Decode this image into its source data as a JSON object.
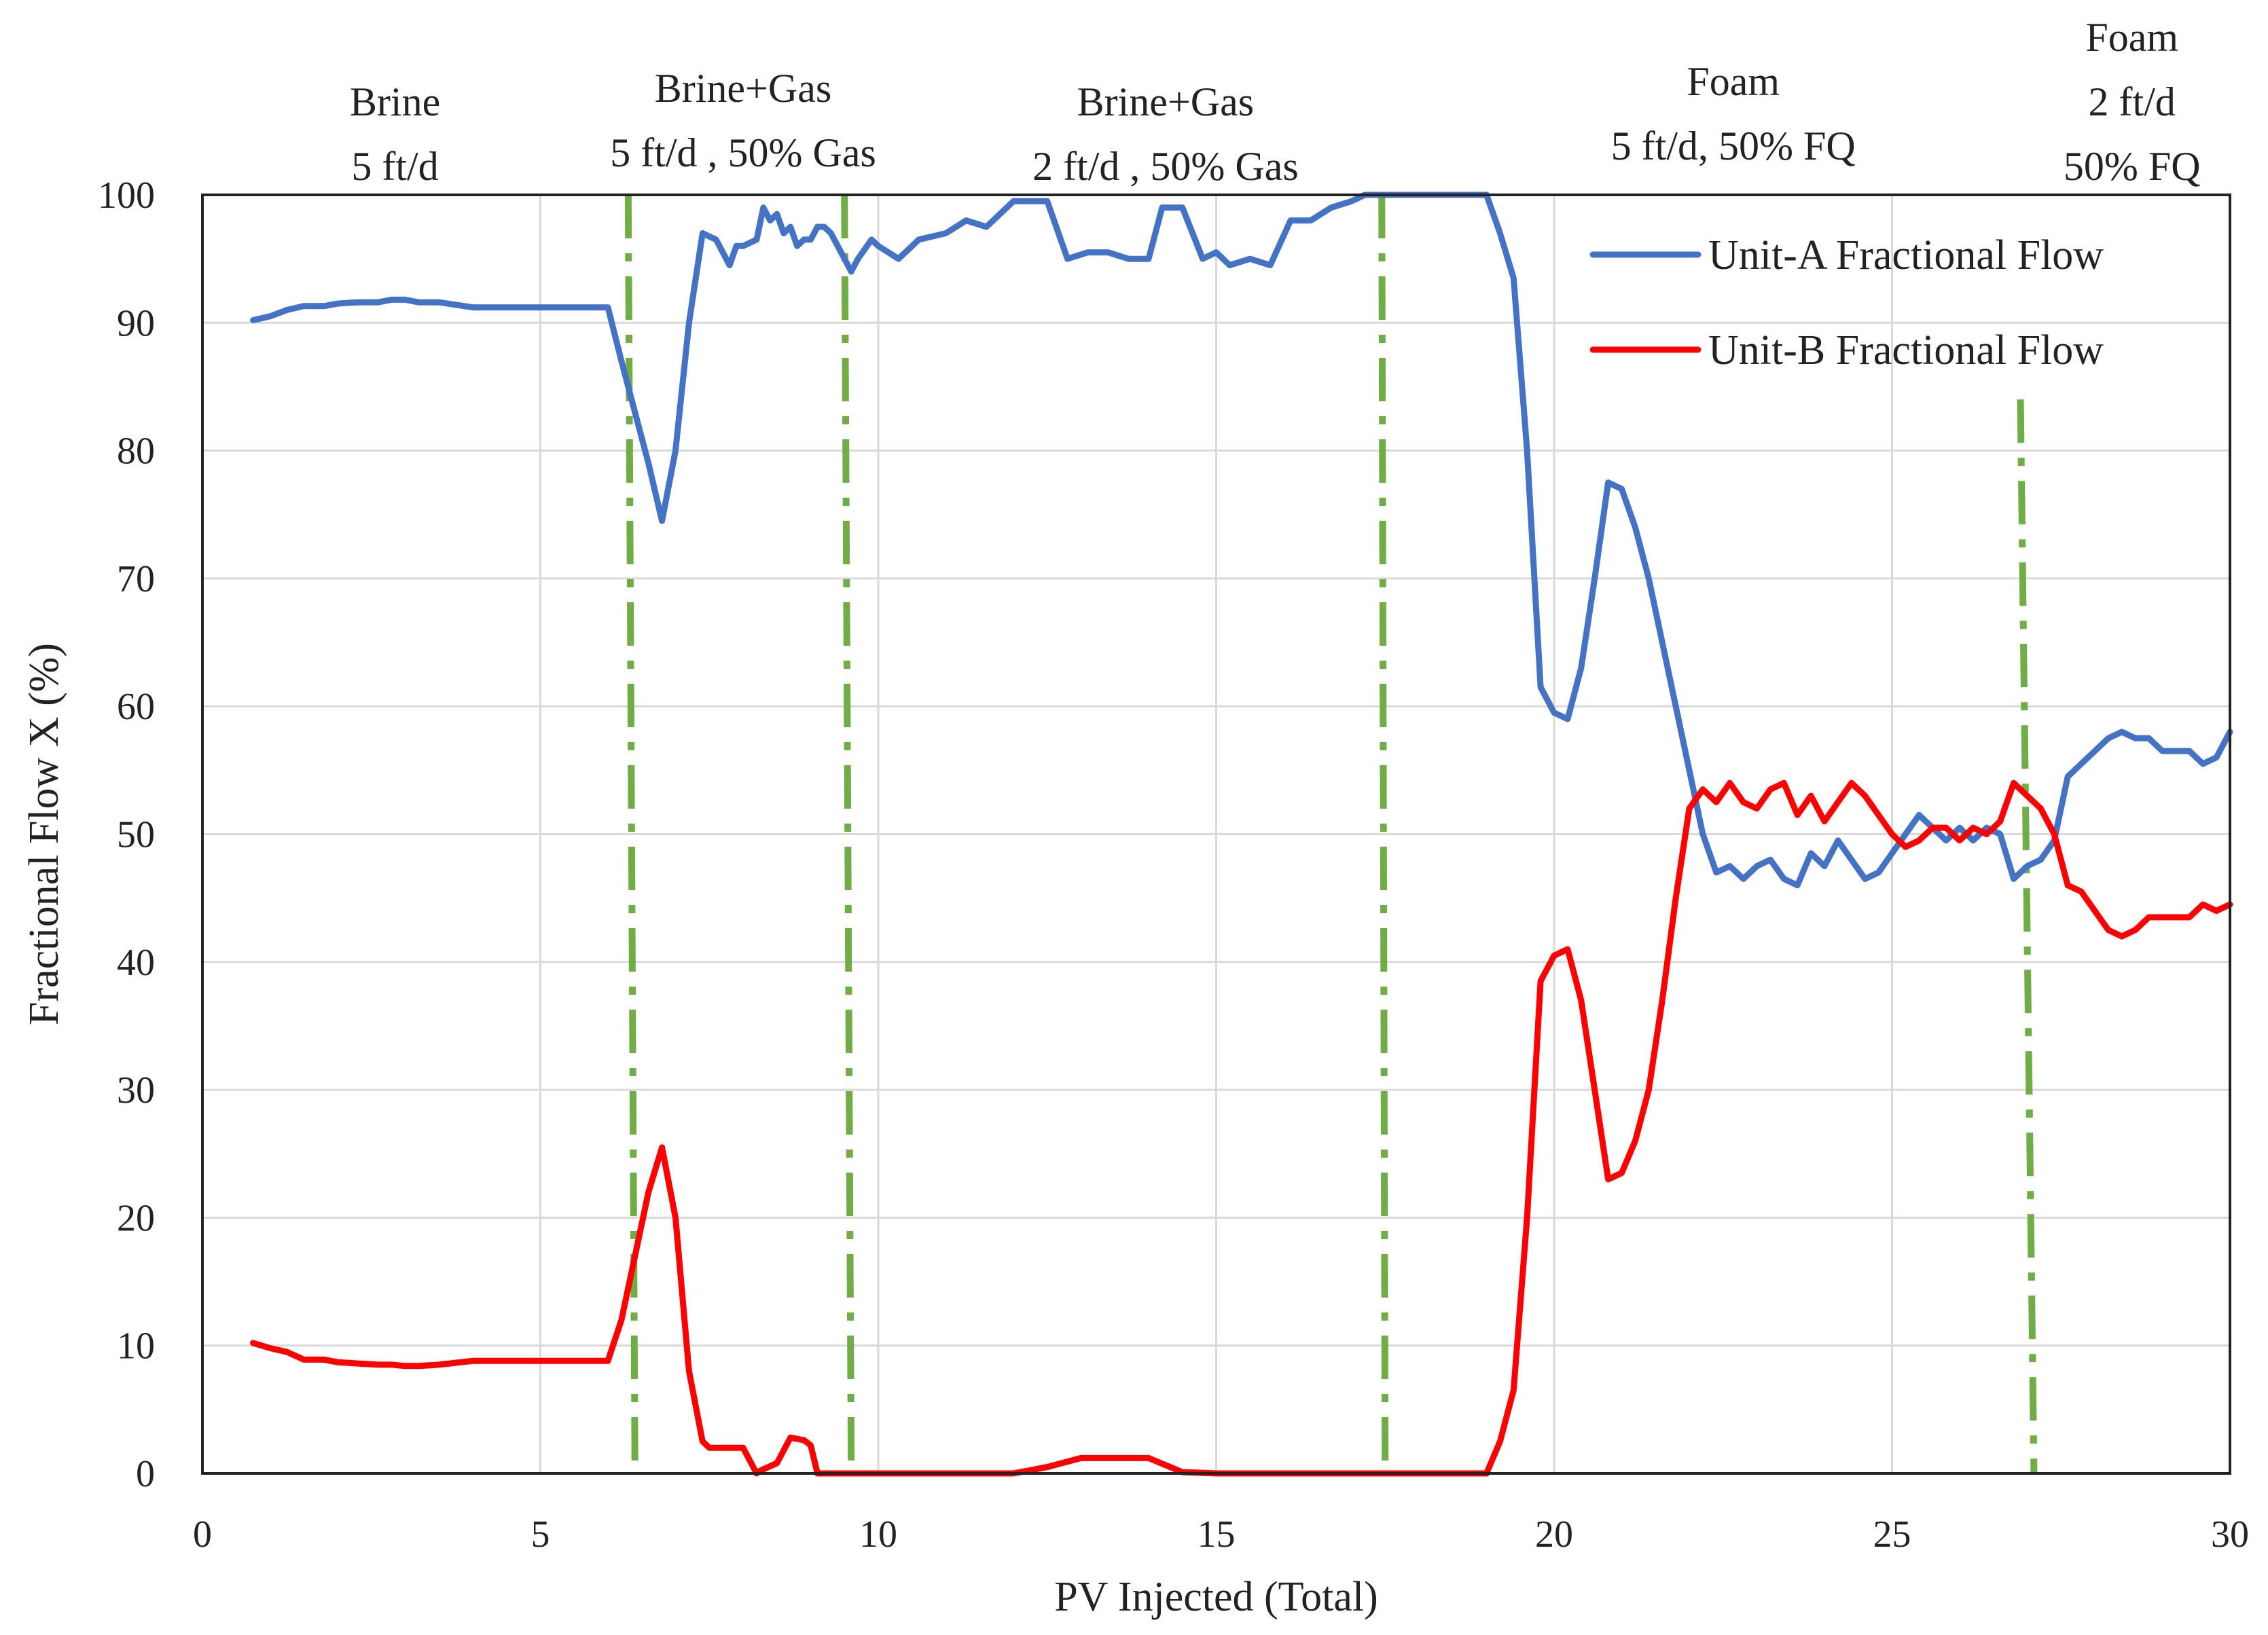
{
  "chart_data": {
    "type": "line",
    "title": "",
    "xlabel": "PV Injected (Total)",
    "ylabel": "Fractional Flow X  (%)",
    "xlim": [
      0,
      30
    ],
    "ylim": [
      0,
      100
    ],
    "x_ticks": [
      0,
      5,
      10,
      15,
      20,
      25,
      30
    ],
    "y_ticks": [
      0,
      10,
      20,
      30,
      40,
      50,
      60,
      70,
      80,
      90,
      100
    ],
    "grid": true,
    "legend_position": "top-right",
    "series": [
      {
        "name": "Unit-A Fractional Flow",
        "color": "#4472C4",
        "x": [
          0.75,
          1.0,
          1.25,
          1.5,
          1.8,
          2.0,
          2.3,
          2.6,
          2.8,
          3.0,
          3.2,
          3.5,
          4.0,
          4.5,
          5.0,
          5.5,
          6.0,
          6.2,
          6.4,
          6.6,
          6.8,
          7.0,
          7.2,
          7.4,
          7.6,
          7.8,
          7.9,
          8.0,
          8.2,
          8.3,
          8.4,
          8.5,
          8.6,
          8.7,
          8.8,
          8.9,
          9.0,
          9.1,
          9.2,
          9.3,
          9.4,
          9.5,
          9.6,
          9.7,
          9.9,
          10.0,
          10.3,
          10.6,
          11.0,
          11.3,
          11.6,
          12.0,
          12.5,
          12.8,
          13.1,
          13.4,
          13.7,
          14.0,
          14.2,
          14.5,
          14.8,
          15.0,
          15.2,
          15.5,
          15.8,
          16.1,
          16.4,
          16.7,
          17.0,
          17.2,
          17.5,
          17.8,
          18.0,
          18.5,
          19.0,
          19.2,
          19.4,
          19.6,
          19.8,
          20.0,
          20.2,
          20.4,
          20.6,
          20.8,
          21.0,
          21.2,
          21.4,
          21.6,
          21.8,
          22.0,
          22.2,
          22.4,
          22.6,
          22.8,
          23.0,
          23.2,
          23.4,
          23.6,
          23.8,
          24.0,
          24.2,
          24.4,
          24.6,
          24.8,
          25.0,
          25.2,
          25.4,
          25.6,
          25.8,
          26.0,
          26.2,
          26.4,
          26.6,
          26.8,
          27.0,
          27.2,
          27.4,
          27.6,
          27.8,
          28.0,
          28.2,
          28.4,
          28.6,
          28.8,
          29.0,
          29.2,
          29.4,
          29.6,
          29.8,
          30.0
        ],
        "y": [
          90.2,
          90.5,
          91.0,
          91.3,
          91.3,
          91.5,
          91.6,
          91.6,
          91.8,
          91.8,
          91.6,
          91.6,
          91.2,
          91.2,
          91.2,
          91.2,
          91.2,
          87.0,
          83.0,
          79.0,
          74.5,
          80.0,
          90.0,
          97.0,
          96.5,
          94.5,
          96.0,
          96.0,
          96.5,
          99.0,
          98.0,
          98.5,
          97.0,
          97.5,
          96.0,
          96.5,
          96.5,
          97.5,
          97.5,
          97.0,
          96.0,
          95.0,
          94.0,
          95.0,
          96.5,
          96.0,
          95.0,
          96.5,
          97.0,
          98.0,
          97.5,
          99.5,
          99.5,
          95.0,
          95.5,
          95.5,
          95.0,
          95.0,
          99.0,
          99.0,
          95.0,
          95.5,
          94.5,
          95.0,
          94.5,
          98.0,
          98.0,
          99.0,
          99.5,
          100,
          100,
          100,
          100,
          100,
          100,
          97.0,
          93.5,
          80.0,
          61.5,
          59.5,
          59.0,
          63.0,
          70.0,
          77.5,
          77.0,
          74.0,
          70.0,
          65.0,
          60.0,
          55.0,
          50.0,
          47.0,
          47.5,
          46.5,
          47.5,
          48.0,
          46.5,
          46.0,
          48.5,
          47.5,
          49.5,
          48.0,
          46.5,
          47.0,
          48.5,
          50.0,
          51.5,
          50.5,
          49.5,
          50.5,
          49.5,
          50.5,
          50.0,
          46.5,
          47.5,
          48.0,
          49.5,
          54.5,
          55.5,
          56.5,
          57.5,
          58.0,
          57.5,
          57.5,
          56.5,
          56.5,
          56.5,
          55.5,
          56.0,
          58.0
        ]
      },
      {
        "name": "Unit-B Fractional Flow",
        "color": "#FF0000",
        "x": [
          0.75,
          1.0,
          1.25,
          1.5,
          1.8,
          2.0,
          2.3,
          2.6,
          2.8,
          3.0,
          3.2,
          3.5,
          4.0,
          4.5,
          5.0,
          5.5,
          6.0,
          6.2,
          6.4,
          6.6,
          6.8,
          7.0,
          7.2,
          7.4,
          7.5,
          7.6,
          7.7,
          7.8,
          8.0,
          8.2,
          8.25,
          8.5,
          8.7,
          8.9,
          9.0,
          9.1,
          9.3,
          9.4,
          9.5,
          10.0,
          11.0,
          12.0,
          12.5,
          13.0,
          13.5,
          14.0,
          14.5,
          15.0,
          16.0,
          17.0,
          18.0,
          19.0,
          19.2,
          19.4,
          19.6,
          19.8,
          20.0,
          20.2,
          20.4,
          20.6,
          20.8,
          21.0,
          21.2,
          21.4,
          21.6,
          21.8,
          22.0,
          22.2,
          22.4,
          22.6,
          22.8,
          23.0,
          23.2,
          23.4,
          23.6,
          23.8,
          24.0,
          24.2,
          24.4,
          24.6,
          24.8,
          25.0,
          25.2,
          25.4,
          25.6,
          25.8,
          26.0,
          26.2,
          26.4,
          26.6,
          26.8,
          27.0,
          27.2,
          27.4,
          27.6,
          27.8,
          28.0,
          28.2,
          28.4,
          28.6,
          28.8,
          29.0,
          29.2,
          29.4,
          29.6,
          29.8,
          30.0
        ],
        "y": [
          10.2,
          9.8,
          9.5,
          8.9,
          8.9,
          8.7,
          8.6,
          8.5,
          8.5,
          8.4,
          8.4,
          8.5,
          8.8,
          8.8,
          8.8,
          8.8,
          8.8,
          12.0,
          17.0,
          22.0,
          25.5,
          20.0,
          8.0,
          2.5,
          2.0,
          2.0,
          2.0,
          2.0,
          2.0,
          0,
          0.2,
          0.8,
          2.8,
          2.6,
          2.2,
          0,
          0,
          0,
          0,
          0,
          0,
          0,
          0.5,
          1.2,
          1.2,
          1.2,
          0.1,
          0,
          0,
          0,
          0,
          0,
          2.5,
          6.5,
          20.0,
          38.5,
          40.5,
          41.0,
          37.0,
          30.0,
          23.0,
          23.5,
          26.0,
          30.0,
          37.0,
          45.0,
          52.0,
          53.5,
          52.5,
          54.0,
          52.5,
          52.0,
          53.5,
          54.0,
          51.5,
          53.0,
          51.0,
          52.5,
          54.0,
          53.0,
          51.5,
          50.0,
          49.0,
          49.5,
          50.5,
          50.5,
          49.5,
          50.5,
          50.0,
          51.0,
          54.0,
          53.0,
          52.0,
          50.0,
          46.0,
          45.5,
          44.0,
          42.5,
          42.0,
          42.5,
          43.5,
          43.5,
          43.5,
          43.5,
          44.5,
          44.0,
          44.5
        ]
      }
    ],
    "vertical_markers": {
      "color": "#70AD47",
      "lines": [
        {
          "x_top": 6.3,
          "x_bottom": 6.4,
          "y_top": 100
        },
        {
          "x_top": 9.5,
          "x_bottom": 9.6,
          "y_top": 100
        },
        {
          "x_top": 17.45,
          "x_bottom": 17.5,
          "y_top": 100
        },
        {
          "x_top": 26.9,
          "x_bottom": 27.1,
          "y_top": 84
        }
      ]
    },
    "annotations": [
      {
        "lines": [
          "Brine",
          "5 ft/d"
        ],
        "x": 2.85
      },
      {
        "lines": [
          "Brine+Gas",
          "5 ft/d , 50% Gas"
        ],
        "x": 8.0
      },
      {
        "lines": [
          "Brine+Gas",
          "2 ft/d , 50% Gas"
        ],
        "x": 14.25
      },
      {
        "lines": [
          "Foam",
          "5 ft/d, 50% FQ"
        ],
        "x": 22.65
      },
      {
        "lines": [
          "Foam",
          "2 ft/d",
          "50% FQ"
        ],
        "x": 28.55
      }
    ]
  }
}
